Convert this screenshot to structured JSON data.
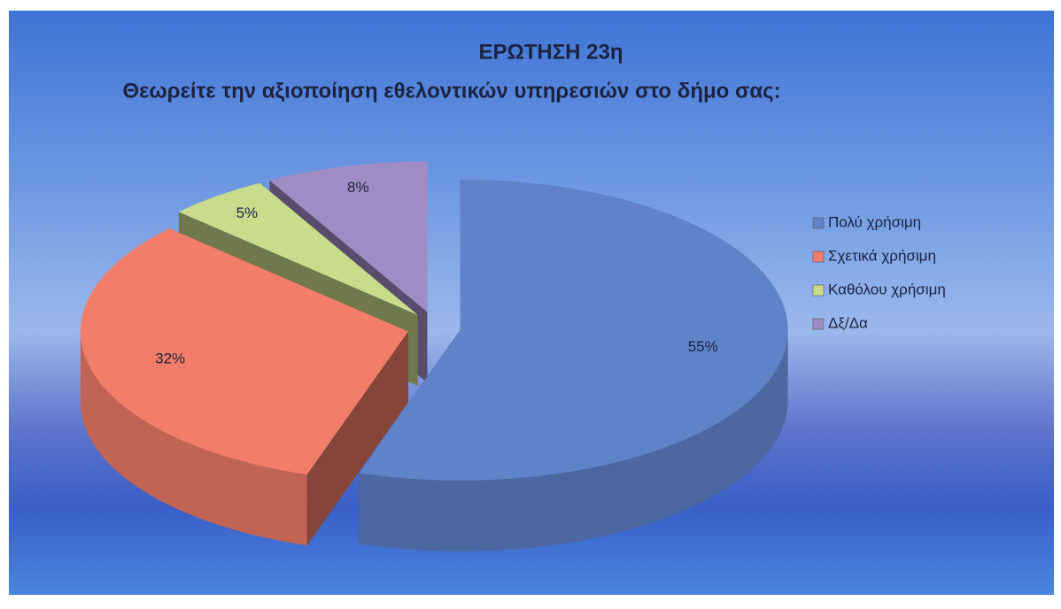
{
  "chart_data": {
    "type": "pie",
    "title": "ΕΡΩΤΗΣΗ 23η",
    "subtitle": "Θεωρείτε την αξιοποίηση εθελοντικών υπηρεσιών στο δήμο σας:",
    "categories": [
      "Πολύ χρήσιμη",
      "Σχετικά χρήσιμη",
      "Καθόλου χρήσιμη",
      "Δξ/Δα"
    ],
    "values": [
      55,
      32,
      5,
      8
    ],
    "value_labels": [
      "55%",
      "32%",
      "5%",
      "8%"
    ],
    "colors": [
      "#5f82c8",
      "#f27d68",
      "#c9dc8c",
      "#a08cc4"
    ],
    "legend": "right"
  }
}
